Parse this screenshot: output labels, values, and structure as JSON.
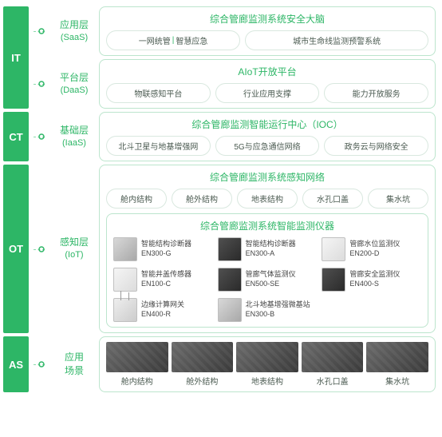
{
  "colors": {
    "primary": "#2db666",
    "border": "#bce5cd",
    "pill_border": "#d9e8df",
    "text_muted": "#4a5a50"
  },
  "spines": {
    "it": "IT",
    "ct": "CT",
    "ot": "OT",
    "as": "AS"
  },
  "layers": {
    "saas": {
      "cn": "应用层",
      "en": "(SaaS)"
    },
    "daas": {
      "cn": "平台层",
      "en": "(DaaS)"
    },
    "iaas": {
      "cn": "基础层",
      "en": "(IaaS)"
    },
    "iot": {
      "cn": "感知层",
      "en": "(IoT)"
    },
    "scene": {
      "cn": "应用",
      "cn2": "场景"
    }
  },
  "saas": {
    "title": "综合管廊监测系统安全大脑",
    "items": {
      "a": "一网统管",
      "divider": "|",
      "b": "智慧应急",
      "c": "城市生命线监测预警系统"
    }
  },
  "daas": {
    "title": "AIoT开放平台",
    "items": {
      "a": "物联感知平台",
      "b": "行业应用支撑",
      "c": "能力开放服务"
    }
  },
  "iaas": {
    "title": "综合管廊监测智能运行中心（IOC）",
    "items": {
      "a": "北斗卫星与地基增强网",
      "b": "5G与应急通信网络",
      "c": "政务云与网络安全"
    }
  },
  "iot": {
    "title1": "综合管廊监测系统感知网络",
    "pills1": {
      "a": "舱内结构",
      "b": "舱外结构",
      "c": "地表结构",
      "d": "水孔口盖",
      "e": "集水坑"
    },
    "title2": "综合管廊监测系统智能监测仪器",
    "devices": [
      {
        "name": "智能结构诊断器",
        "model": "EN300-G",
        "style": "gray"
      },
      {
        "name": "智能结构诊断器",
        "model": "EN300-A",
        "style": "dark"
      },
      {
        "name": "管廊水位监测仪",
        "model": "EN200-D",
        "style": "white"
      },
      {
        "name": "智能井盖传感器",
        "model": "EN100-C",
        "style": "white"
      },
      {
        "name": "管廊气体监测仪",
        "model": "EN500-SE",
        "style": "dark"
      },
      {
        "name": "管廊安全监测仪",
        "model": "EN400-S",
        "style": "dark"
      },
      {
        "name": "边缘计算网关",
        "model": "EN400-R",
        "style": "antenna"
      },
      {
        "name": "北斗地基增强微基站",
        "model": "EN300-B",
        "style": "gray"
      }
    ]
  },
  "scenes": {
    "items": {
      "a": "舱内结构",
      "b": "舱外结构",
      "c": "地表结构",
      "d": "水孔口盖",
      "e": "集水坑"
    }
  }
}
